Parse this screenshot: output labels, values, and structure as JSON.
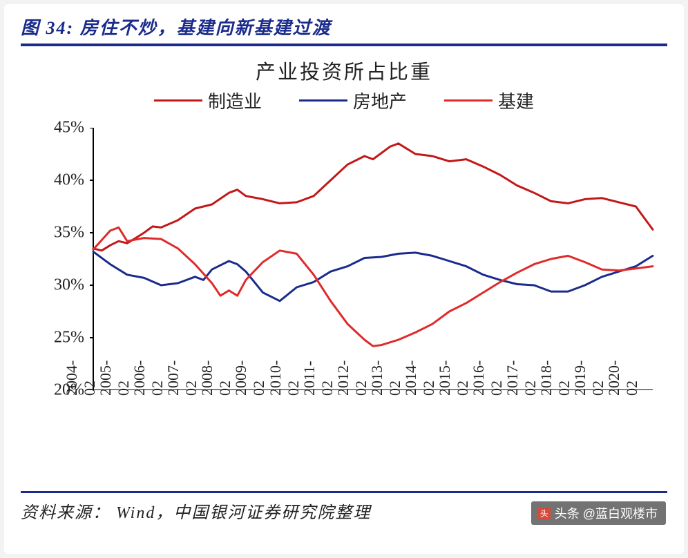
{
  "figure_label": "图 34:  房住不炒，基建向新基建过渡",
  "chart": {
    "type": "line",
    "title": "产业投资所占比重",
    "title_fontsize": 29,
    "background_color": "#ffffff",
    "axis_color": "#000000",
    "tick_font_size_y": 24,
    "tick_font_size_x": 22,
    "ylim": [
      20,
      45
    ],
    "ytick_step": 5,
    "yticks": [
      "20%",
      "25%",
      "30%",
      "35%",
      "40%",
      "45%"
    ],
    "xticks": [
      "2004-02",
      "2005-02",
      "2006-02",
      "2007-02",
      "2008-02",
      "2009-02",
      "2010-02",
      "2011-02",
      "2012-02",
      "2013-02",
      "2014-02",
      "2015-02",
      "2016-02",
      "2017-02",
      "2018-02",
      "2019-02",
      "2020-02"
    ],
    "x_rotation_deg": 90,
    "line_width": 3,
    "legend": {
      "position": "top-center",
      "fontsize": 26,
      "items": [
        {
          "label": "制造业",
          "color": "#c21818"
        },
        {
          "label": "房地产",
          "color": "#1a2b8c"
        },
        {
          "label": "基建",
          "color": "#e02a2a"
        }
      ]
    },
    "series": {
      "manufacturing": {
        "label": "制造业",
        "color": "#c21818",
        "x": [
          0,
          0.25,
          0.5,
          0.75,
          1,
          1.25,
          1.5,
          1.75,
          2,
          2.5,
          3,
          3.5,
          4,
          4.25,
          4.5,
          5,
          5.5,
          6,
          6.5,
          7,
          7.5,
          8,
          8.25,
          8.5,
          8.75,
          9,
          9.5,
          10,
          10.5,
          11,
          11.5,
          12,
          12.5,
          13,
          13.5,
          14,
          14.5,
          15,
          15.5,
          16,
          16.5
        ],
        "y": [
          33.5,
          33.3,
          33.8,
          34.2,
          34.0,
          34.5,
          35.0,
          35.6,
          35.5,
          36.2,
          37.3,
          37.7,
          38.8,
          39.1,
          38.5,
          38.2,
          37.8,
          37.9,
          38.5,
          40.0,
          41.5,
          42.3,
          42.0,
          42.6,
          43.2,
          43.5,
          42.5,
          42.3,
          41.8,
          42.0,
          41.3,
          40.5,
          39.5,
          38.8,
          38.0,
          37.8,
          38.2,
          38.3,
          37.9,
          37.5,
          35.3
        ]
      },
      "realestate": {
        "label": "房地产",
        "color": "#1a2b8c",
        "x": [
          0,
          0.5,
          1,
          1.5,
          2,
          2.5,
          3,
          3.25,
          3.5,
          4,
          4.25,
          4.5,
          5,
          5.5,
          6,
          6.5,
          7,
          7.5,
          8,
          8.5,
          9,
          9.5,
          10,
          10.5,
          11,
          11.5,
          12,
          12.5,
          13,
          13.5,
          14,
          14.5,
          15,
          15.5,
          16,
          16.5
        ],
        "y": [
          33.2,
          32.0,
          31.0,
          30.7,
          30.0,
          30.2,
          30.8,
          30.5,
          31.5,
          32.3,
          32.0,
          31.3,
          29.3,
          28.5,
          29.8,
          30.3,
          31.3,
          31.8,
          32.6,
          32.7,
          33.0,
          33.1,
          32.8,
          32.3,
          31.8,
          31.0,
          30.5,
          30.1,
          30.0,
          29.4,
          29.4,
          30.0,
          30.8,
          31.3,
          31.8,
          32.8
        ]
      },
      "infrastructure": {
        "label": "基建",
        "color": "#e02a2a",
        "x": [
          0,
          0.5,
          0.75,
          1,
          1.5,
          2,
          2.5,
          3,
          3.5,
          3.75,
          4,
          4.25,
          4.5,
          5,
          5.5,
          6,
          6.5,
          7,
          7.5,
          8,
          8.25,
          8.5,
          9,
          9.5,
          10,
          10.5,
          11,
          11.5,
          12,
          12.5,
          13,
          13.5,
          14,
          14.5,
          15,
          15.5,
          16,
          16.5
        ],
        "y": [
          33.4,
          35.2,
          35.5,
          34.2,
          34.5,
          34.4,
          33.5,
          32.0,
          30.2,
          29.0,
          29.5,
          29.0,
          30.5,
          32.2,
          33.3,
          33.0,
          31.0,
          28.5,
          26.3,
          24.8,
          24.2,
          24.3,
          24.8,
          25.5,
          26.3,
          27.5,
          28.3,
          29.3,
          30.3,
          31.2,
          32.0,
          32.5,
          32.8,
          32.2,
          31.5,
          31.4,
          31.6,
          31.8
        ]
      }
    }
  },
  "source_label": "资料来源： Wind，中国银河证券研究院整理",
  "watermark": {
    "icon": "头",
    "text": "头条 @蓝白观楼市"
  },
  "colors": {
    "border_blue": "#1a2b8c",
    "card_bg": "#ffffff",
    "page_bg": "#f3f3f3"
  }
}
